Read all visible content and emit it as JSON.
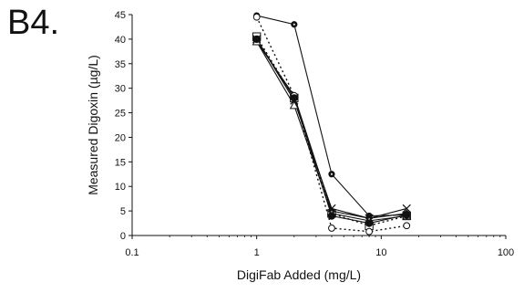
{
  "figure": {
    "panel_label": "B4."
  },
  "chart_data": {
    "type": "line",
    "xlabel": "DigiFab Added (mg/L)",
    "ylabel": "Measured Digoxin (µg/L)",
    "xscale": "log",
    "xlim": [
      0.1,
      100
    ],
    "ylim": [
      0,
      45
    ],
    "xticks": [
      0.1,
      1,
      10,
      100
    ],
    "xtick_labels": [
      "0.1",
      "1",
      "10",
      "100"
    ],
    "yticks": [
      0,
      5,
      10,
      15,
      20,
      25,
      30,
      35,
      40,
      45
    ],
    "ytick_labels": [
      "0",
      "5",
      "10",
      "15",
      "20",
      "25",
      "30",
      "35",
      "40",
      "45"
    ],
    "grid": false,
    "legend": "none",
    "x": [
      1,
      2,
      4,
      8,
      16
    ],
    "series": [
      {
        "marker": "filled-circle-dot",
        "line": "solid",
        "color": "#111111",
        "values": [
          44.8,
          43.0,
          12.5,
          4.0,
          4.2
        ]
      },
      {
        "marker": "open-square",
        "line": "dotted",
        "color": "#111111",
        "values": [
          40.5,
          28.0,
          4.5,
          2.0,
          4.0
        ]
      },
      {
        "marker": "diamond",
        "line": "solid",
        "color": "#111111",
        "values": [
          39.5,
          28.5,
          5.0,
          3.5,
          4.5
        ]
      },
      {
        "marker": "x",
        "line": "solid",
        "color": "#111111",
        "values": [
          40.0,
          27.5,
          5.5,
          3.5,
          5.5
        ]
      },
      {
        "marker": "triangle",
        "line": "solid",
        "color": "#111111",
        "values": [
          39.5,
          26.5,
          4.5,
          3.0,
          4.0
        ]
      },
      {
        "marker": "open-circle",
        "line": "dotted",
        "color": "#111111",
        "values": [
          44.5,
          28.5,
          1.5,
          0.8,
          2.0
        ]
      },
      {
        "marker": "filled-circle",
        "line": "solid",
        "color": "#111111",
        "values": [
          40.0,
          28.0,
          4.0,
          2.5,
          4.2
        ]
      }
    ]
  }
}
